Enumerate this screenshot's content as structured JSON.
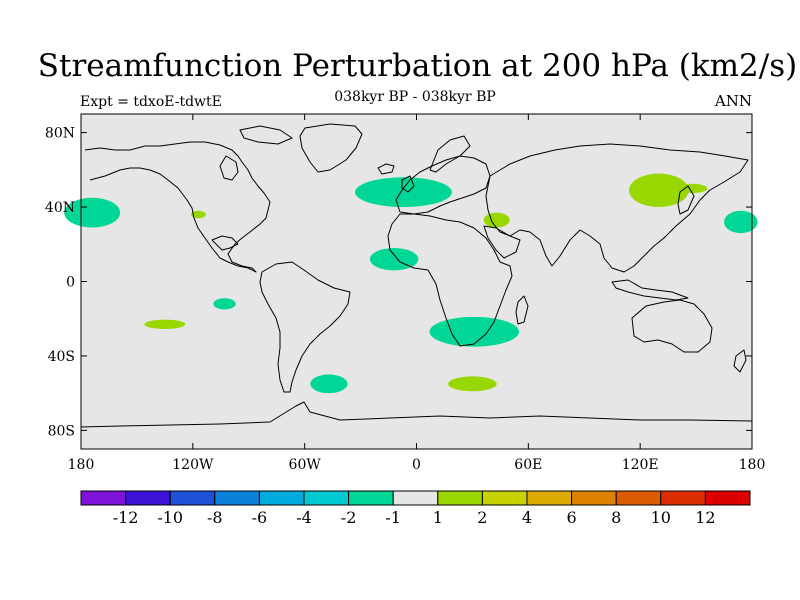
{
  "title": "Streamfunction Perturbation at 200 hPa (km2/s)",
  "subtitle": "038kyr BP - 038kyr BP",
  "left_label": "Expt = tdxoE-tdwtE",
  "right_label": "ANN",
  "map": {
    "projection": "cylindrical equidistant",
    "lon_range": [
      -180,
      180
    ],
    "lat_range": [
      -90,
      90
    ],
    "lon_ticks": [
      {
        "value": -180,
        "label": "180"
      },
      {
        "value": -120,
        "label": "120W"
      },
      {
        "value": -60,
        "label": "60W"
      },
      {
        "value": 0,
        "label": "0"
      },
      {
        "value": 60,
        "label": "60E"
      },
      {
        "value": 120,
        "label": "120E"
      },
      {
        "value": 180,
        "label": "180"
      }
    ],
    "lat_ticks": [
      {
        "value": 80,
        "label": "80N"
      },
      {
        "value": 40,
        "label": "40N"
      },
      {
        "value": 0,
        "label": "0"
      },
      {
        "value": -40,
        "label": "40S"
      },
      {
        "value": -80,
        "label": "80S"
      }
    ],
    "background_color": "#e6e6e6",
    "coastline_color": "#000000"
  },
  "anomalies": [
    {
      "lon": -174,
      "lat": 37,
      "rlon": 15,
      "rlat": 8,
      "color": "#00d796"
    },
    {
      "lon": -117,
      "lat": 36,
      "rlon": 4,
      "rlat": 2,
      "color": "#99d700"
    },
    {
      "lon": -103,
      "lat": -12,
      "rlon": 6,
      "rlat": 3,
      "color": "#00d796"
    },
    {
      "lon": -135,
      "lat": -23,
      "rlon": 11,
      "rlat": 2.5,
      "color": "#99d700"
    },
    {
      "lon": -47,
      "lat": -55,
      "rlon": 10,
      "rlat": 5,
      "color": "#00d796"
    },
    {
      "lon": -7,
      "lat": 48,
      "rlon": 26,
      "rlat": 8,
      "color": "#00d796"
    },
    {
      "lon": -12,
      "lat": 12,
      "rlon": 13,
      "rlat": 6,
      "color": "#00d796"
    },
    {
      "lon": 43,
      "lat": 33,
      "rlon": 7,
      "rlat": 4,
      "color": "#99d700"
    },
    {
      "lon": 31,
      "lat": -27,
      "rlon": 24,
      "rlat": 8,
      "color": "#00d796"
    },
    {
      "lon": 30,
      "lat": -55,
      "rlon": 13,
      "rlat": 4,
      "color": "#99d700"
    },
    {
      "lon": 130,
      "lat": 49,
      "rlon": 16,
      "rlat": 9,
      "color": "#99d700"
    },
    {
      "lon": 148,
      "lat": 50,
      "rlon": 8,
      "rlat": 2.5,
      "color": "#99d700"
    },
    {
      "lon": 174,
      "lat": 32,
      "rlon": 9,
      "rlat": 6,
      "color": "#00d796"
    }
  ],
  "colorbar": {
    "colors": [
      "#7d14d8",
      "#3c14d8",
      "#1e50d8",
      "#0a82dc",
      "#00aadc",
      "#00c8d0",
      "#00d796",
      "#e6e6e6",
      "#99d700",
      "#c8d200",
      "#dcaa00",
      "#dc8200",
      "#dc5a00",
      "#dc2d00",
      "#dc0000"
    ],
    "labels": [
      "-12",
      "-10",
      "-8",
      "-6",
      "-4",
      "-2",
      "-1",
      "1",
      "2",
      "4",
      "6",
      "8",
      "10",
      "12"
    ]
  }
}
